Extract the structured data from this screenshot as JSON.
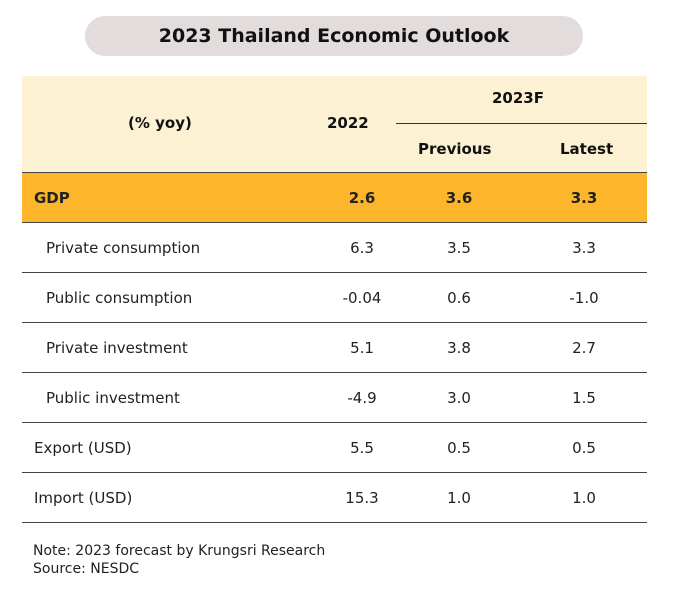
{
  "title": "2023 Thailand Economic Outlook",
  "header": {
    "unit_label": "(% yoy)",
    "col_2022": "2022",
    "col_2023f": "2023F",
    "col_previous": "Previous",
    "col_latest": "Latest"
  },
  "rows": [
    {
      "label": "GDP",
      "v2022": "2.6",
      "previous": "3.6",
      "latest": "3.3"
    },
    {
      "label": "Private consumption",
      "v2022": "6.3",
      "previous": "3.5",
      "latest": "3.3"
    },
    {
      "label": "Public consumption",
      "v2022": "-0.04",
      "previous": "0.6",
      "latest": "-1.0"
    },
    {
      "label": "Private investment",
      "v2022": "5.1",
      "previous": "3.8",
      "latest": "2.7"
    },
    {
      "label": "Public investment",
      "v2022": "-4.9",
      "previous": "3.0",
      "latest": "1.5"
    },
    {
      "label": "Export (USD)",
      "v2022": "5.5",
      "previous": "0.5",
      "latest": "0.5"
    },
    {
      "label": "Import (USD)",
      "v2022": "15.3",
      "previous": "1.0",
      "latest": "1.0"
    }
  ],
  "note": {
    "line1": "Note: 2023 forecast by Krungsri Research",
    "line2": "Source: NESDC"
  },
  "colors": {
    "header_bg": "#fdf1d3",
    "gdp_bg": "#fdb52c",
    "title_pill_bg": "#e2dcdc"
  }
}
